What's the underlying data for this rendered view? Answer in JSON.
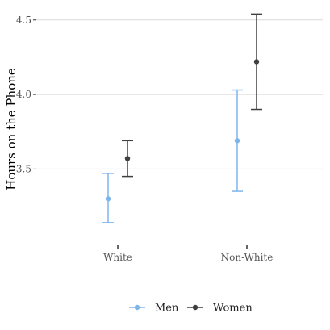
{
  "chart_data": {
    "type": "scatter",
    "xlabel": "",
    "ylabel": "Hours on the Phone",
    "categories": [
      "White",
      "Non-White"
    ],
    "ylim": [
      3.02,
      4.58
    ],
    "yticks": [
      3.5,
      4.0,
      4.5
    ],
    "ytick_labels": [
      "3.5",
      "4.0",
      "4.5"
    ],
    "grid": "horizontal",
    "legend_position": "bottom",
    "series": [
      {
        "name": "Men",
        "color": "#7EB6EC",
        "values": [
          3.3,
          3.69
        ],
        "lower": [
          3.14,
          3.35
        ],
        "upper": [
          3.47,
          4.03
        ]
      },
      {
        "name": "Women",
        "color": "#3F3F3F",
        "values": [
          3.57,
          4.22
        ],
        "lower": [
          3.45,
          3.9
        ],
        "upper": [
          3.69,
          4.54
        ]
      }
    ]
  }
}
